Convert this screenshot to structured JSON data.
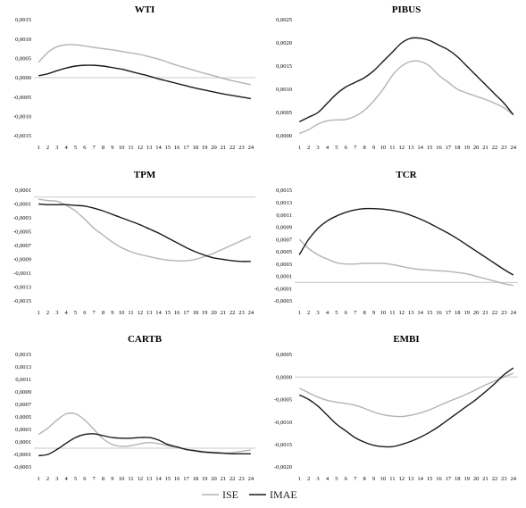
{
  "figure": {
    "legend": [
      {
        "name": "ISE",
        "color": "#b3b3b3"
      },
      {
        "name": "IMAE",
        "color": "#1a1a1a"
      }
    ]
  },
  "chart_data": [
    {
      "type": "line",
      "title": "WTI",
      "x": [
        1,
        2,
        3,
        4,
        5,
        6,
        7,
        8,
        9,
        10,
        11,
        12,
        13,
        14,
        15,
        16,
        17,
        18,
        19,
        20,
        21,
        22,
        23,
        24
      ],
      "ylim": [
        -0.0015,
        0.0015
      ],
      "yticks": [
        "0,0015",
        "0,0010",
        "0,0005",
        "0,0000",
        "-0,0005",
        "-0,0010",
        "-0,0015"
      ],
      "ytick_values": [
        0.0015,
        0.001,
        0.0005,
        0,
        -0.0005,
        -0.001,
        -0.0015
      ],
      "zero_line": true,
      "series": [
        {
          "name": "ISE",
          "color": "#b3b3b3",
          "values": [
            0.0004,
            0.00065,
            0.0008,
            0.00085,
            0.00085,
            0.00082,
            0.00078,
            0.00075,
            0.00072,
            0.00068,
            0.00064,
            0.0006,
            0.00054,
            0.00048,
            0.0004,
            0.00032,
            0.00025,
            0.00018,
            0.00011,
            5e-05,
            -2e-05,
            -8e-05,
            -0.00013,
            -0.00018
          ]
        },
        {
          "name": "IMAE",
          "color": "#1a1a1a",
          "values": [
            5e-05,
            0.0001,
            0.00018,
            0.00025,
            0.0003,
            0.00032,
            0.00032,
            0.0003,
            0.00026,
            0.00022,
            0.00016,
            0.0001,
            4e-05,
            -3e-05,
            -9e-05,
            -0.00015,
            -0.00021,
            -0.00027,
            -0.00032,
            -0.00037,
            -0.00042,
            -0.00046,
            -0.0005,
            -0.00054
          ]
        }
      ]
    },
    {
      "type": "line",
      "title": "PIBUS",
      "x": [
        1,
        2,
        3,
        4,
        5,
        6,
        7,
        8,
        9,
        10,
        11,
        12,
        13,
        14,
        15,
        16,
        17,
        18,
        19,
        20,
        21,
        22,
        23,
        24
      ],
      "ylim": [
        0,
        0.0025
      ],
      "yticks": [
        "0,0025",
        "0,0020",
        "0,0015",
        "0,0010",
        "0,0005",
        "0,0000"
      ],
      "ytick_values": [
        0.0025,
        0.002,
        0.0015,
        0.001,
        0.0005,
        0
      ],
      "zero_line": false,
      "series": [
        {
          "name": "ISE",
          "color": "#b3b3b3",
          "values": [
            5e-05,
            0.00013,
            0.00025,
            0.00032,
            0.00034,
            0.00035,
            0.00042,
            0.00055,
            0.00075,
            0.001,
            0.0013,
            0.0015,
            0.0016,
            0.0016,
            0.0015,
            0.0013,
            0.00115,
            0.001,
            0.00092,
            0.00085,
            0.00078,
            0.0007,
            0.0006,
            0.00045
          ]
        },
        {
          "name": "IMAE",
          "color": "#1a1a1a",
          "values": [
            0.0003,
            0.0004,
            0.0005,
            0.0007,
            0.0009,
            0.00105,
            0.00115,
            0.00125,
            0.0014,
            0.0016,
            0.0018,
            0.002,
            0.0021,
            0.0021,
            0.00205,
            0.00195,
            0.00185,
            0.0017,
            0.0015,
            0.0013,
            0.0011,
            0.0009,
            0.0007,
            0.00045
          ]
        }
      ]
    },
    {
      "type": "line",
      "title": "TPM",
      "x": [
        1,
        2,
        3,
        4,
        5,
        6,
        7,
        8,
        9,
        10,
        11,
        12,
        13,
        14,
        15,
        16,
        17,
        18,
        19,
        20,
        21,
        22,
        23,
        24
      ],
      "ylim": [
        -0.0015,
        0.0001
      ],
      "yticks": [
        "0,0001",
        "-0,0001",
        "-0,0003",
        "-0,0005",
        "-0,0007",
        "-0,0009",
        "-0,0011",
        "-0,0013",
        "-0,0015"
      ],
      "ytick_values": [
        0.0001,
        -0.0001,
        -0.0003,
        -0.0005,
        -0.0007,
        -0.0009,
        -0.0011,
        -0.0013,
        -0.0015
      ],
      "zero_line": true,
      "series": [
        {
          "name": "ISE",
          "color": "#b3b3b3",
          "values": [
            -3e-05,
            -5e-05,
            -6e-05,
            -0.00012,
            -0.0002,
            -0.00032,
            -0.00045,
            -0.00055,
            -0.00065,
            -0.00073,
            -0.00079,
            -0.00083,
            -0.00086,
            -0.00089,
            -0.00091,
            -0.00092,
            -0.00092,
            -0.0009,
            -0.00086,
            -0.00081,
            -0.00075,
            -0.00069,
            -0.00063,
            -0.00057
          ]
        },
        {
          "name": "IMAE",
          "color": "#1a1a1a",
          "values": [
            -0.0001,
            -0.00011,
            -0.00011,
            -0.00011,
            -0.00012,
            -0.00013,
            -0.00016,
            -0.0002,
            -0.00025,
            -0.0003,
            -0.00035,
            -0.0004,
            -0.00046,
            -0.00052,
            -0.00059,
            -0.00066,
            -0.00073,
            -0.00079,
            -0.00084,
            -0.00088,
            -0.0009,
            -0.00092,
            -0.00093,
            -0.00093
          ]
        }
      ]
    },
    {
      "type": "line",
      "title": "TCR",
      "x": [
        1,
        2,
        3,
        4,
        5,
        6,
        7,
        8,
        9,
        10,
        11,
        12,
        13,
        14,
        15,
        16,
        17,
        18,
        19,
        20,
        21,
        22,
        23,
        24
      ],
      "ylim": [
        -0.0003,
        0.0015
      ],
      "yticks": [
        "0,0015",
        "0,0013",
        "0,0011",
        "0,0009",
        "0,0007",
        "0,0005",
        "0,0003",
        "0,0001",
        "-0,0001",
        "-0,0003"
      ],
      "ytick_values": [
        0.0015,
        0.0013,
        0.0011,
        0.0009,
        0.0007,
        0.0005,
        0.0003,
        0.0001,
        -0.0001,
        -0.0003
      ],
      "zero_line": true,
      "series": [
        {
          "name": "ISE",
          "color": "#b3b3b3",
          "values": [
            0.0007,
            0.00055,
            0.00045,
            0.00038,
            0.00032,
            0.0003,
            0.0003,
            0.00031,
            0.00031,
            0.00031,
            0.00029,
            0.00026,
            0.00023,
            0.00021,
            0.0002,
            0.00019,
            0.00018,
            0.00016,
            0.00014,
            0.0001,
            6e-05,
            2e-05,
            -2e-05,
            -5e-05
          ]
        },
        {
          "name": "IMAE",
          "color": "#1a1a1a",
          "values": [
            0.00045,
            0.0007,
            0.00088,
            0.001,
            0.00108,
            0.00114,
            0.00118,
            0.0012,
            0.0012,
            0.00119,
            0.00117,
            0.00114,
            0.00109,
            0.00103,
            0.00096,
            0.00088,
            0.0008,
            0.00071,
            0.00061,
            0.00051,
            0.00041,
            0.00031,
            0.00021,
            0.00012
          ]
        }
      ]
    },
    {
      "type": "line",
      "title": "CARTB",
      "x": [
        1,
        2,
        3,
        4,
        5,
        6,
        7,
        8,
        9,
        10,
        11,
        12,
        13,
        14,
        15,
        16,
        17,
        18,
        19,
        20,
        21,
        22,
        23,
        24
      ],
      "ylim": [
        -0.0003,
        0.0015
      ],
      "yticks": [
        "0,0015",
        "0,0013",
        "0,0011",
        "0,0009",
        "0,0007",
        "0,0005",
        "0,0003",
        "0,0001",
        "-0,0001",
        "-0,0003"
      ],
      "ytick_values": [
        0.0015,
        0.0013,
        0.0011,
        0.0009,
        0.0007,
        0.0005,
        0.0003,
        0.0001,
        -0.0001,
        -0.0003
      ],
      "zero_line": true,
      "series": [
        {
          "name": "ISE",
          "color": "#b3b3b3",
          "values": [
            0.00022,
            0.00032,
            0.00045,
            0.00055,
            0.00055,
            0.00045,
            0.0003,
            0.00015,
            6e-05,
            3e-05,
            4e-05,
            7e-05,
            9e-05,
            7e-05,
            4e-05,
            1e-05,
            -2e-05,
            -5e-05,
            -7e-05,
            -8e-05,
            -8e-05,
            -7e-05,
            -5e-05,
            -3e-05
          ]
        },
        {
          "name": "IMAE",
          "color": "#1a1a1a",
          "values": [
            -0.00012,
            -0.0001,
            -2e-05,
            8e-05,
            0.00017,
            0.00022,
            0.00023,
            0.0002,
            0.00017,
            0.00016,
            0.00016,
            0.00017,
            0.00017,
            0.00013,
            6e-05,
            2e-05,
            -2e-05,
            -4e-05,
            -6e-05,
            -7e-05,
            -8e-05,
            -9e-05,
            -9e-05,
            -9e-05
          ]
        }
      ]
    },
    {
      "type": "line",
      "title": "EMBI",
      "x": [
        1,
        2,
        3,
        4,
        5,
        6,
        7,
        8,
        9,
        10,
        11,
        12,
        13,
        14,
        15,
        16,
        17,
        18,
        19,
        20,
        21,
        22,
        23,
        24
      ],
      "ylim": [
        -0.002,
        0.0005
      ],
      "yticks": [
        "0,0005",
        "0,0000",
        "-0,0005",
        "-0,0010",
        "-0,0015",
        "-0,0020"
      ],
      "ytick_values": [
        0.0005,
        0,
        -0.0005,
        -0.001,
        -0.0015,
        -0.002
      ],
      "zero_line": true,
      "series": [
        {
          "name": "ISE",
          "color": "#b3b3b3",
          "values": [
            -0.00025,
            -0.00035,
            -0.00045,
            -0.00052,
            -0.00056,
            -0.00059,
            -0.00063,
            -0.0007,
            -0.00078,
            -0.00084,
            -0.00087,
            -0.00088,
            -0.00085,
            -0.0008,
            -0.00073,
            -0.00064,
            -0.00055,
            -0.00047,
            -0.00038,
            -0.00028,
            -0.00018,
            -9e-05,
            0,
            8e-05
          ]
        },
        {
          "name": "IMAE",
          "color": "#1a1a1a",
          "values": [
            -0.0004,
            -0.0005,
            -0.00065,
            -0.00085,
            -0.00105,
            -0.0012,
            -0.00135,
            -0.00145,
            -0.00152,
            -0.00155,
            -0.00155,
            -0.0015,
            -0.00143,
            -0.00134,
            -0.00123,
            -0.0011,
            -0.00095,
            -0.0008,
            -0.00065,
            -0.0005,
            -0.00033,
            -0.00015,
            5e-05,
            0.0002
          ]
        }
      ]
    }
  ]
}
